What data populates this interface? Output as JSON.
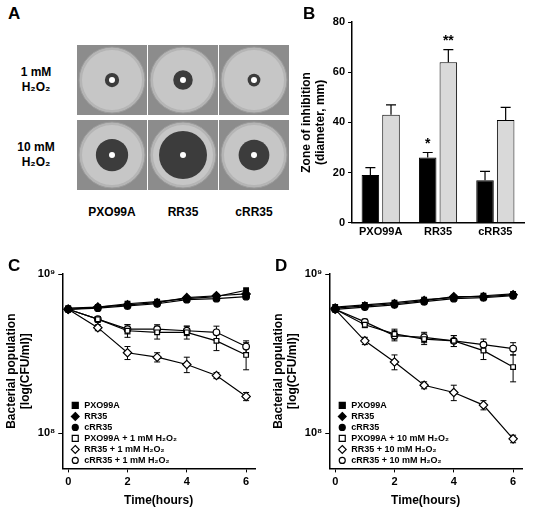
{
  "panel_a": {
    "panel_label": "A",
    "rows": [
      [
        "1 mM",
        "H₂O₂"
      ],
      [
        "10 mM",
        "H₂O₂"
      ]
    ],
    "columns": [
      "PXO99A",
      "RR35",
      "cRR35"
    ]
  },
  "chart_data": [
    {
      "panel_label": "B",
      "type": "bar",
      "categories": [
        "PXO99A",
        "RR35",
        "cRR35"
      ],
      "y_label": [
        "Zone of inhibition",
        "(diameter, mm)"
      ],
      "ylim": [
        0,
        80
      ],
      "yticks": [
        0,
        20,
        40,
        60,
        80
      ],
      "grid": false,
      "series": [
        {
          "color": "#000000",
          "values": [
            19,
            26,
            17
          ],
          "errors": [
            3,
            2,
            3.5
          ],
          "significance": [
            null,
            "*",
            null
          ]
        },
        {
          "color": "#d9d9d9",
          "values": [
            43,
            64,
            41
          ],
          "errors": [
            4,
            5,
            5
          ],
          "significance": [
            null,
            "**",
            null
          ]
        }
      ]
    },
    {
      "panel_label": "C",
      "type": "line",
      "x": [
        0,
        1,
        2,
        3,
        4,
        5,
        6
      ],
      "x_label": "Time(hours)",
      "y_label": [
        "Bacterial population",
        "[log(CFU/ml)]"
      ],
      "log": "y",
      "xlim": [
        -0.2,
        6.3
      ],
      "xticks": [
        0,
        2,
        4,
        6
      ],
      "ylim": [
        60000000,
        1000000000
      ],
      "yticks": [
        {
          "value": 100000000,
          "label": "10⁸"
        },
        {
          "value": 1000000000,
          "label": "10⁹"
        }
      ],
      "grid": false,
      "legend": "lower left",
      "series": [
        {
          "name": "PXO99A",
          "color": "#000000",
          "marker": "square",
          "values": [
            610000000,
            620000000,
            650000000,
            670000000,
            700000000,
            720000000,
            790000000
          ]
        },
        {
          "name": "RR35",
          "color": "#000000",
          "marker": "diamond",
          "values": [
            600000000,
            620000000,
            640000000,
            660000000,
            710000000,
            730000000,
            750000000
          ]
        },
        {
          "name": "cRR35",
          "color": "#000000",
          "marker": "circle",
          "values": [
            600000000,
            610000000,
            630000000,
            650000000,
            690000000,
            700000000,
            720000000
          ]
        },
        {
          "name": "PXO99A + 1 mM H₂O₂",
          "color": "#000000",
          "marker": "square_open",
          "values": [
            600000000,
            520000000,
            440000000,
            430000000,
            430000000,
            380000000,
            310000000
          ],
          "errors": [
            0,
            20000000,
            40000000,
            40000000,
            40000000,
            50000000,
            60000000
          ]
        },
        {
          "name": "RR35 + 1 mM H₂O₂",
          "color": "#000000",
          "marker": "diamond_open",
          "values": [
            600000000,
            460000000,
            320000000,
            300000000,
            270000000,
            230000000,
            170000000
          ],
          "errors": [
            0,
            20000000,
            30000000,
            20000000,
            30000000,
            10000000,
            10000000
          ]
        },
        {
          "name": "cRR35 + 1 mM H₂O₂",
          "color": "#000000",
          "marker": "circle_open",
          "values": [
            600000000,
            520000000,
            450000000,
            450000000,
            440000000,
            430000000,
            350000000
          ],
          "errors": [
            0,
            20000000,
            30000000,
            30000000,
            30000000,
            40000000,
            30000000
          ]
        }
      ]
    },
    {
      "panel_label": "D",
      "type": "line",
      "x": [
        0,
        1,
        2,
        3,
        4,
        5,
        6
      ],
      "x_label": "Time(hours)",
      "y_label": [
        "Bacterial population",
        "[log(CFU/ml)]"
      ],
      "log": "y",
      "xlim": [
        -0.2,
        6.3
      ],
      "xticks": [
        0,
        2,
        4,
        6
      ],
      "ylim": [
        60000000,
        1000000000
      ],
      "yticks": [
        {
          "value": 100000000,
          "label": "10⁸"
        },
        {
          "value": 1000000000,
          "label": "10⁹"
        }
      ],
      "grid": false,
      "legend": "lower left",
      "series": [
        {
          "name": "PXO99A",
          "color": "#000000",
          "marker": "square",
          "values": [
            620000000,
            640000000,
            660000000,
            690000000,
            710000000,
            730000000,
            750000000
          ]
        },
        {
          "name": "RR35",
          "color": "#000000",
          "marker": "diamond",
          "values": [
            610000000,
            630000000,
            650000000,
            680000000,
            720000000,
            720000000,
            740000000
          ]
        },
        {
          "name": "cRR35",
          "color": "#000000",
          "marker": "circle",
          "values": [
            600000000,
            620000000,
            640000000,
            670000000,
            700000000,
            710000000,
            730000000
          ]
        },
        {
          "name": "PXO99A + 10 mM H₂O₂",
          "color": "#000000",
          "marker": "square_open",
          "values": [
            600000000,
            480000000,
            420000000,
            390000000,
            380000000,
            330000000,
            260000000
          ],
          "errors": [
            0,
            20000000,
            30000000,
            30000000,
            30000000,
            40000000,
            50000000
          ]
        },
        {
          "name": "RR35 + 10 mM H₂O₂",
          "color": "#000000",
          "marker": "diamond_open",
          "values": [
            600000000,
            380000000,
            280000000,
            200000000,
            180000000,
            150000000,
            92000000
          ],
          "errors": [
            0,
            20000000,
            30000000,
            10000000,
            20000000,
            10000000,
            5000000
          ]
        },
        {
          "name": "cRR35 + 10 mM H₂O₂",
          "color": "#000000",
          "marker": "circle_open",
          "values": [
            600000000,
            500000000,
            410000000,
            400000000,
            380000000,
            360000000,
            340000000
          ],
          "errors": [
            0,
            20000000,
            30000000,
            30000000,
            30000000,
            30000000,
            30000000
          ]
        }
      ]
    }
  ]
}
